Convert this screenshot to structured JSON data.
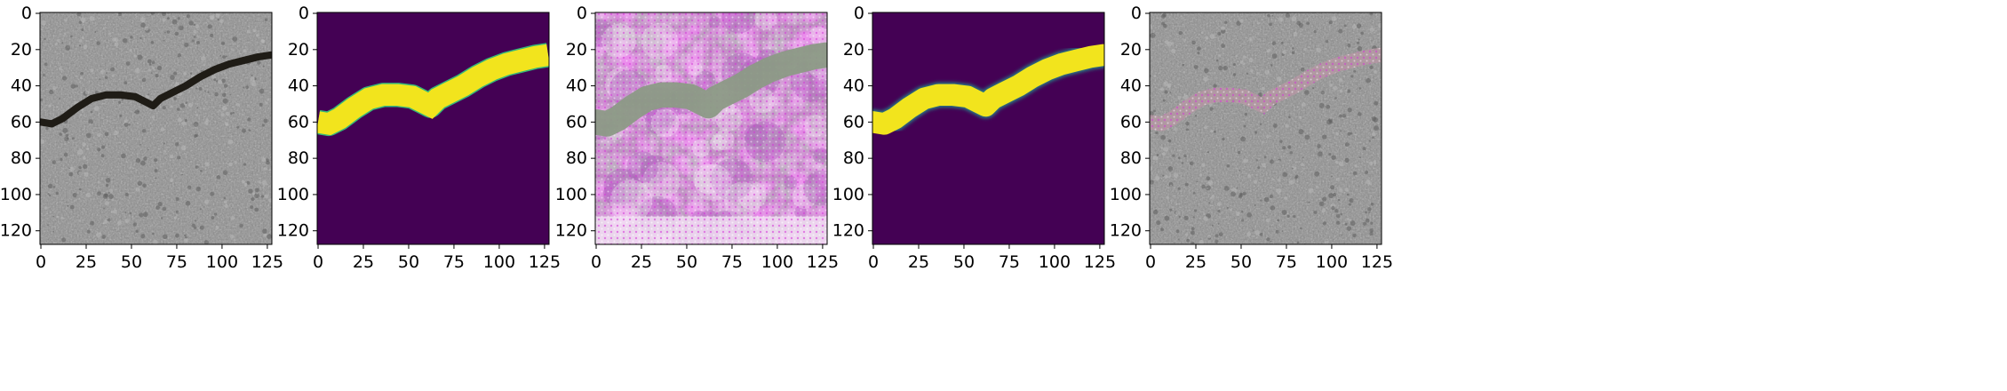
{
  "panels": [
    {
      "id": "input-photo",
      "kind": "photo",
      "xticks": [
        "0",
        "25",
        "50",
        "75",
        "100",
        "125"
      ],
      "yticks": [
        "0",
        "20",
        "40",
        "60",
        "80",
        "100",
        "120"
      ],
      "colors": {
        "background": "#8c8c8c",
        "speckle_dark": "#5e5e5e",
        "speckle_light": "#b8b8b8",
        "crack": "#1f1c16"
      }
    },
    {
      "id": "ground-truth-mask",
      "kind": "mask",
      "xticks": [
        "0",
        "25",
        "50",
        "75",
        "100",
        "125"
      ],
      "yticks": [
        "0",
        "20",
        "40",
        "60",
        "80",
        "100",
        "120"
      ],
      "colors": {
        "background": "#440154",
        "crack": "#f2e41d",
        "edge": "#35b779"
      }
    },
    {
      "id": "generated-texture",
      "kind": "noise",
      "xticks": [
        "0",
        "25",
        "50",
        "75",
        "100",
        "125"
      ],
      "yticks": [
        "0",
        "20",
        "40",
        "60",
        "80",
        "100",
        "120"
      ],
      "colors": {
        "background": "#e2a7e0",
        "purple": "#a45bb4",
        "light": "#f3e4f4",
        "crack": "#8c9a86"
      }
    },
    {
      "id": "predicted-mask",
      "kind": "mask-smooth",
      "xticks": [
        "0",
        "25",
        "50",
        "75",
        "100",
        "125"
      ],
      "yticks": [
        "0",
        "20",
        "40",
        "60",
        "80",
        "100",
        "120"
      ],
      "colors": {
        "background": "#440154",
        "crack": "#f2e41d",
        "edge": "#21918c"
      }
    },
    {
      "id": "overlay-photo",
      "kind": "photo-overlay",
      "xticks": [
        "0",
        "25",
        "50",
        "75",
        "100",
        "125"
      ],
      "yticks": [
        "0",
        "20",
        "40",
        "60",
        "80",
        "100",
        "120"
      ],
      "colors": {
        "background": "#8c8c8c",
        "speckle_dark": "#5e5e5e",
        "speckle_light": "#b8b8b8",
        "crack": "#b897a4"
      }
    }
  ],
  "crack_path": {
    "units": "image pixels (x 0-127 left to right, y 0-127 top to bottom)",
    "points": [
      [
        0,
        60
      ],
      [
        6,
        61
      ],
      [
        12,
        58
      ],
      [
        20,
        52
      ],
      [
        28,
        47
      ],
      [
        36,
        45
      ],
      [
        44,
        45
      ],
      [
        52,
        46
      ],
      [
        58,
        49
      ],
      [
        62,
        51
      ],
      [
        66,
        47
      ],
      [
        72,
        44
      ],
      [
        80,
        40
      ],
      [
        88,
        35
      ],
      [
        96,
        31
      ],
      [
        104,
        28
      ],
      [
        112,
        26
      ],
      [
        120,
        24
      ],
      [
        127,
        23
      ]
    ],
    "thickness": {
      "input-photo": 4,
      "ground-truth-mask": 12,
      "generated-texture": 14,
      "predicted-mask": 12,
      "overlay-photo": 8
    }
  }
}
